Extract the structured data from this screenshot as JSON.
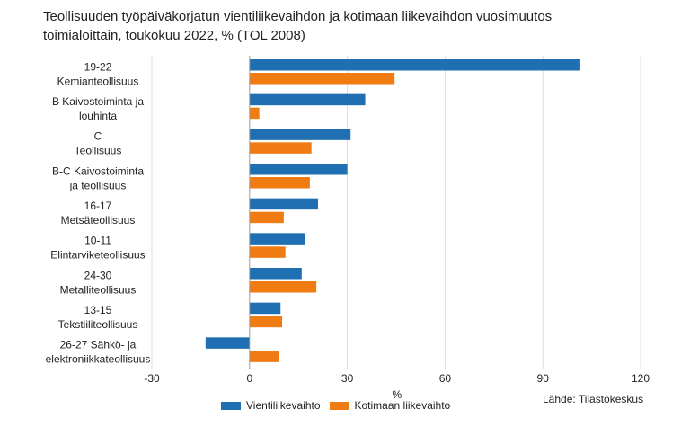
{
  "title": {
    "line1": "Teollisuuden työpäiväkorjatun vientiliikevaihdon ja kotimaan liikevaihdon vuosimuutos",
    "line2": "toimialoittain, toukokuu 2022, % (TOL 2008)"
  },
  "source": "Lähde: Tilastokeskus",
  "chart_data": {
    "type": "bar",
    "orientation": "horizontal",
    "title": "Teollisuuden työpäiväkorjatun vientiliikevaihdon ja kotimaan liikevaihdon vuosimuutos toimialoittain, toukokuu 2022, % (TOL 2008)",
    "xlabel": "%",
    "ylabel": "",
    "xlim": [
      -30,
      120
    ],
    "xticks": [
      -30,
      0,
      30,
      60,
      90,
      120
    ],
    "grid": true,
    "legend_position": "bottom",
    "categories": [
      [
        "19-22",
        "Kemianteollisuus"
      ],
      [
        "B Kaivostoiminta ja",
        "louhinta"
      ],
      [
        "C",
        "Teollisuus"
      ],
      [
        "B-C Kaivostoiminta",
        "ja teollisuus"
      ],
      [
        "16-17",
        "Metsäteollisuus"
      ],
      [
        "10-11",
        "Elintarviketeollisuus"
      ],
      [
        "24-30",
        "Metalliteollisuus"
      ],
      [
        "13-15",
        "Tekstiiliteollisuus"
      ],
      [
        "26-27 Sähkö- ja",
        "elektroniikkateollisuus"
      ]
    ],
    "series": [
      {
        "name": "Vientiliikevaihto",
        "color": "#1f6fb2",
        "values": [
          101.5,
          35.5,
          31,
          30,
          21,
          17,
          16,
          9.5,
          -13.5
        ]
      },
      {
        "name": "Kotimaan liikevaihto",
        "color": "#f07b12",
        "values": [
          44.5,
          3,
          19,
          18.5,
          10.5,
          11,
          20.5,
          10,
          9
        ]
      }
    ]
  }
}
